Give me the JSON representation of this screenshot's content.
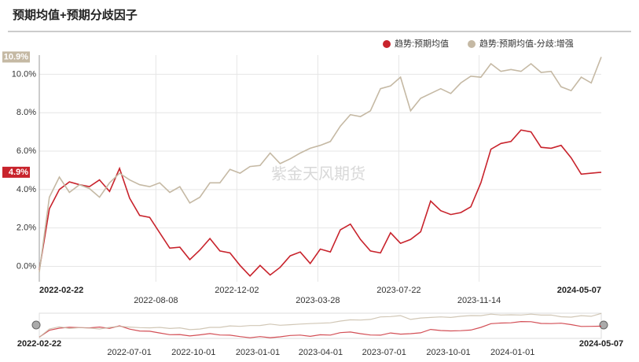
{
  "chart_data": {
    "type": "line",
    "title": "预期均值+预期分歧因子",
    "watermark": "紫金天风期货",
    "xlim": [
      "2022-02-22",
      "2024-05-07"
    ],
    "xticks": [
      "2022-02-22",
      "2022-08-08",
      "2022-12-02",
      "2023-03-28",
      "2023-07-22",
      "2023-11-14",
      "2024-05-07"
    ],
    "ylim": [
      -0.8,
      11
    ],
    "yticks": [
      {
        "value": 0,
        "label": "0.0%"
      },
      {
        "value": 2,
        "label": "2.0%"
      },
      {
        "value": 4,
        "label": "4.0%"
      },
      {
        "value": 6,
        "label": "6.0%"
      },
      {
        "value": 8,
        "label": "8.0%"
      },
      {
        "value": 10,
        "label": "10.0%"
      }
    ],
    "grid": true,
    "legend": "top-right",
    "series": [
      {
        "name": "趋势:预期均值",
        "color": "#c8232c",
        "values": [
          -0.2,
          3.0,
          4.0,
          4.4,
          4.25,
          4.15,
          4.5,
          3.9,
          5.1,
          3.55,
          2.65,
          2.55,
          1.75,
          0.95,
          1.0,
          0.35,
          0.85,
          1.45,
          0.8,
          0.7,
          0.05,
          -0.5,
          0.05,
          -0.45,
          -0.05,
          0.55,
          0.75,
          0.15,
          0.9,
          0.75,
          1.9,
          2.2,
          1.4,
          0.8,
          0.7,
          1.75,
          1.2,
          1.4,
          1.8,
          3.4,
          2.9,
          2.7,
          2.8,
          3.1,
          4.35,
          6.1,
          6.4,
          6.5,
          7.1,
          7.0,
          6.2,
          6.15,
          6.3,
          5.65,
          4.8,
          4.85,
          4.9
        ],
        "end_label": {
          "value": 4.9,
          "label": "4.9%"
        }
      },
      {
        "name": "趋势:预期均值-分歧:增强",
        "color": "#c5b9a4",
        "values": [
          -0.3,
          3.6,
          4.65,
          3.85,
          4.25,
          4.05,
          3.6,
          4.35,
          4.85,
          4.5,
          4.25,
          4.15,
          4.35,
          3.85,
          4.15,
          3.3,
          3.6,
          4.35,
          4.35,
          5.05,
          4.85,
          5.2,
          5.25,
          5.9,
          5.35,
          5.6,
          5.9,
          6.15,
          6.3,
          6.5,
          7.3,
          7.9,
          7.8,
          8.1,
          9.25,
          9.4,
          9.85,
          8.1,
          8.75,
          9.0,
          9.25,
          9.0,
          9.55,
          9.9,
          9.85,
          10.55,
          10.15,
          10.25,
          10.15,
          10.55,
          10.1,
          10.15,
          9.35,
          9.15,
          9.85,
          9.55,
          10.9
        ],
        "end_label": {
          "value": 10.9,
          "label": "10.9%"
        }
      }
    ],
    "slider": {
      "xticks": [
        "2022-02-22",
        "2022-07-01",
        "2022-10-01",
        "2023-01-01",
        "2023-04-01",
        "2023-07-01",
        "2023-10-01",
        "2024-01-01",
        "2024-05-07"
      ]
    }
  }
}
